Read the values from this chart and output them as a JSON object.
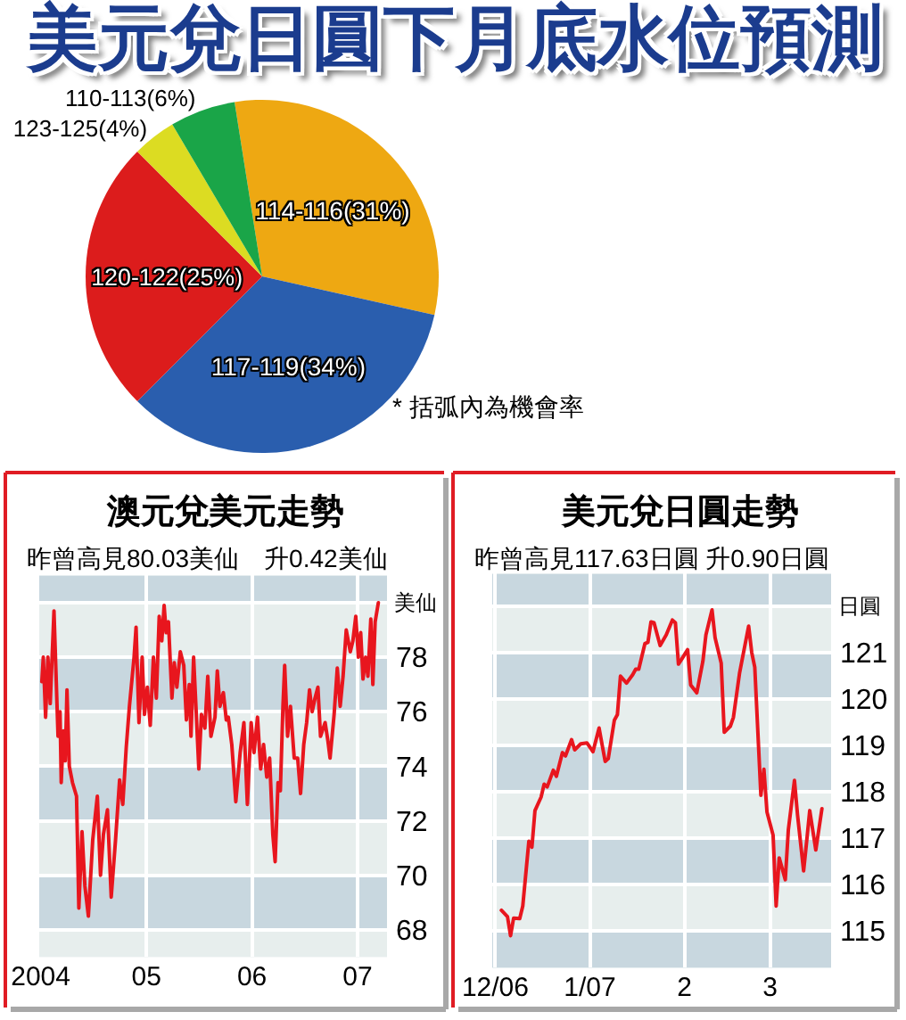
{
  "chart_data": [
    {
      "type": "pie",
      "title": "美元兌日圓下月底水位預測",
      "categories": [
        "114-116",
        "117-119",
        "120-122",
        "123-125",
        "110-113"
      ],
      "values": [
        31,
        34,
        25,
        4,
        6
      ],
      "value_labels": [
        "(31%)",
        "(34%)",
        "(25%)",
        "(4%)",
        "(6%)"
      ],
      "colors": [
        "#eea812",
        "#2a5eae",
        "#dc1c1c",
        "#dcdc22",
        "#1aa548"
      ],
      "annotations": [
        "* 括弧內為機會率"
      ]
    },
    {
      "type": "line",
      "title": "澳元兌美元走勢",
      "subtitle": "昨曾高見80.03美仙　升0.42美仙",
      "ylabel": "美仙",
      "color": "#e8161e",
      "grid": true,
      "x": [
        "2004-01-05",
        "2004-01-10",
        "2004-01-18",
        "2004-01-26",
        "2004-02-03",
        "2004-02-16",
        "2004-03-01",
        "2004-03-08",
        "2004-03-12",
        "2004-03-20",
        "2004-03-26",
        "2004-04-01",
        "2004-04-09",
        "2004-04-20",
        "2004-05-04",
        "2004-05-12",
        "2004-05-23",
        "2004-06-02",
        "2004-06-14",
        "2004-06-29",
        "2004-07-15",
        "2004-07-26",
        "2004-08-05",
        "2004-08-19",
        "2004-09-01",
        "2004-09-16",
        "2004-09-30",
        "2004-10-11",
        "2004-10-23",
        "2004-11-03",
        "2004-11-19",
        "2004-11-26",
        "2004-12-06",
        "2004-12-17",
        "2004-12-25",
        "2005-01-04",
        "2005-01-14",
        "2005-01-25",
        "2005-02-04",
        "2005-02-14",
        "2005-02-23",
        "2005-03-03",
        "2005-03-10",
        "2005-03-18",
        "2005-03-30",
        "2005-04-07",
        "2005-04-16",
        "2005-04-28",
        "2005-05-10",
        "2005-05-19",
        "2005-05-29",
        "2005-06-04",
        "2005-06-13",
        "2005-06-21",
        "2005-07-01",
        "2005-07-10",
        "2005-07-22",
        "2005-08-01",
        "2005-08-12",
        "2005-08-26",
        "2005-09-03",
        "2005-09-12",
        "2005-09-24",
        "2005-10-04",
        "2005-10-11",
        "2005-10-23",
        "2005-11-06",
        "2005-11-21",
        "2005-12-04",
        "2005-12-16",
        "2005-12-29",
        "2006-01-08",
        "2006-01-20",
        "2006-01-31",
        "2006-02-10",
        "2006-02-21",
        "2006-03-03",
        "2006-03-14",
        "2006-03-22",
        "2006-04-01",
        "2006-04-09",
        "2006-04-18",
        "2006-04-24",
        "2006-05-04",
        "2006-05-14",
        "2006-05-27",
        "2006-06-08",
        "2006-06-18",
        "2006-06-29",
        "2006-07-09",
        "2006-07-19",
        "2006-07-28",
        "2006-08-07",
        "2006-08-17",
        "2006-08-26",
        "2006-09-11",
        "2006-09-21",
        "2006-09-28",
        "2006-10-12",
        "2006-10-23",
        "2006-11-02",
        "2006-11-12",
        "2006-11-23",
        "2006-12-07",
        "2006-12-16",
        "2006-12-26",
        "2007-01-04",
        "2007-01-12",
        "2007-01-20",
        "2007-01-29",
        "2007-02-06",
        "2007-02-16",
        "2007-02-23",
        "2007-03-03",
        "2007-03-14"
      ],
      "values": [
        77.1,
        78.0,
        75.8,
        78.0,
        76.3,
        79.7,
        75.1,
        76.0,
        73.4,
        75.3,
        74.2,
        76.8,
        74.0,
        73.4,
        72.9,
        68.8,
        71.6,
        69.6,
        68.5,
        71.3,
        72.9,
        70.0,
        71.5,
        72.4,
        69.2,
        71.3,
        73.5,
        72.6,
        74.7,
        76.2,
        78.0,
        79.1,
        75.6,
        78.0,
        75.9,
        76.9,
        75.5,
        78.0,
        76.5,
        79.5,
        78.6,
        79.9,
        78.9,
        79.3,
        76.5,
        77.8,
        76.9,
        78.2,
        77.7,
        75.7,
        77.0,
        75.1,
        78.0,
        76.2,
        73.9,
        75.9,
        75.4,
        77.3,
        75.1,
        75.8,
        77.5,
        76.2,
        76.7,
        75.7,
        75.8,
        74.8,
        72.7,
        74.5,
        75.6,
        72.6,
        75.6,
        74.5,
        75.8,
        73.9,
        74.8,
        73.6,
        74.3,
        71.5,
        70.5,
        73.4,
        73.1,
        76.2,
        77.7,
        75.1,
        76.2,
        74.3,
        74.3,
        73.0,
        74.8,
        75.6,
        76.8,
        76.0,
        76.5,
        76.9,
        75.1,
        75.6,
        74.9,
        74.3,
        75.9,
        77.6,
        76.2,
        77.3,
        79.0,
        78.2,
        78.6,
        79.5,
        78.0,
        78.9,
        77.2,
        78.0,
        77.3,
        79.4,
        77.0,
        79.3,
        80.0
      ],
      "xlim": [
        "2003-12-27",
        "2007-04-13"
      ],
      "ylim": [
        67,
        81
      ],
      "xticks": [
        {
          "value": "2004-01-01",
          "label": "2004"
        },
        {
          "value": "2005-01-01",
          "label": "05"
        },
        {
          "value": "2006-01-01",
          "label": "06"
        },
        {
          "value": "2007-01-01",
          "label": "07"
        }
      ],
      "yticks": [
        68,
        70,
        72,
        74,
        76,
        78,
        {
          "value": 80,
          "label": null
        }
      ],
      "bands": [
        {
          "axis": "y",
          "from": 80,
          "to": 81,
          "color": "#c8d7df"
        },
        {
          "axis": "y",
          "from": 76,
          "to": 78,
          "color": "#c8d7df"
        },
        {
          "axis": "y",
          "from": 72,
          "to": 74,
          "color": "#c8d7df"
        },
        {
          "axis": "y",
          "from": 68,
          "to": 70,
          "color": "#c8d7df"
        }
      ]
    },
    {
      "type": "line",
      "title": "美元兌日圓走勢",
      "subtitle": "昨曾高見117.63日圓 升0.90日圓",
      "ylabel": "日圓",
      "color": "#e8161e",
      "grid": true,
      "x": [
        "2006-12-03",
        "2006-12-05",
        "2006-12-06",
        "2006-12-07",
        "2006-12-09",
        "2006-12-10",
        "2006-12-12",
        "2006-12-13",
        "2006-12-14",
        "2006-12-16",
        "2006-12-17",
        "2006-12-18",
        "2006-12-20",
        "2006-12-21",
        "2006-12-23",
        "2006-12-24",
        "2006-12-26",
        "2006-12-27",
        "2006-12-29",
        "2006-12-31",
        "2007-01-02",
        "2007-01-04",
        "2007-01-06",
        "2007-01-07",
        "2007-01-09",
        "2007-01-10",
        "2007-01-11",
        "2007-01-13",
        "2007-01-15",
        "2007-01-16",
        "2007-01-17",
        "2007-01-19",
        "2007-01-20",
        "2007-01-21",
        "2007-01-22",
        "2007-01-24",
        "2007-01-26",
        "2007-01-28",
        "2007-01-29",
        "2007-01-30",
        "2007-01-31",
        "2007-02-02",
        "2007-02-03",
        "2007-02-05",
        "2007-02-07",
        "2007-02-08",
        "2007-02-10",
        "2007-02-11",
        "2007-02-13",
        "2007-02-14",
        "2007-02-16",
        "2007-02-17",
        "2007-02-19",
        "2007-02-22",
        "2007-02-23",
        "2007-02-24",
        "2007-02-26",
        "2007-02-27",
        "2007-02-28",
        "2007-03-02",
        "2007-03-03",
        "2007-03-04",
        "2007-03-06",
        "2007-03-07",
        "2007-03-09",
        "2007-03-10",
        "2007-03-12",
        "2007-03-13",
        "2007-03-14",
        "2007-03-16",
        "2007-03-18"
      ],
      "values": [
        115.44,
        115.3,
        114.89,
        115.27,
        115.26,
        115.53,
        116.93,
        116.8,
        117.59,
        117.88,
        118.16,
        118.1,
        118.46,
        118.33,
        118.84,
        118.77,
        119.12,
        118.9,
        119.03,
        119.05,
        118.86,
        119.37,
        118.65,
        118.71,
        119.54,
        119.66,
        120.49,
        120.34,
        120.52,
        120.64,
        120.64,
        121.19,
        121.22,
        121.66,
        121.64,
        121.15,
        121.38,
        121.7,
        121.64,
        120.75,
        120.85,
        121.06,
        120.3,
        120.13,
        120.81,
        121.38,
        121.92,
        121.32,
        120.77,
        119.28,
        119.41,
        119.6,
        120.55,
        121.57,
        121.0,
        120.68,
        117.92,
        118.48,
        117.56,
        117.06,
        115.53,
        116.57,
        116.1,
        117.18,
        118.24,
        117.5,
        116.29,
        116.93,
        117.59,
        116.74,
        117.63
      ],
      "xlim": [
        "2006-11-30",
        "2007-03-21"
      ],
      "ylim": [
        114.2,
        122.7
      ],
      "xticks": [
        {
          "value": "2006-12-01",
          "label": "12/06"
        },
        {
          "value": "2007-01-01",
          "label": "1/07"
        },
        {
          "value": "2007-02-01",
          "label": "2"
        },
        {
          "value": "2007-03-01",
          "label": "3"
        }
      ],
      "yticks": [
        115,
        116,
        117,
        118,
        119,
        120,
        121,
        {
          "value": 122,
          "label": null
        }
      ],
      "bands": [
        {
          "axis": "y",
          "from": 122,
          "to": 122.7,
          "color": "#c8d7df"
        },
        {
          "axis": "y",
          "from": 120,
          "to": 121,
          "color": "#c8d7df"
        },
        {
          "axis": "y",
          "from": 118,
          "to": 119,
          "color": "#c8d7df"
        },
        {
          "axis": "y",
          "from": 116,
          "to": 117,
          "color": "#c8d7df"
        },
        {
          "axis": "y",
          "from": 114.2,
          "to": 115,
          "color": "#c8d7df"
        }
      ]
    }
  ]
}
